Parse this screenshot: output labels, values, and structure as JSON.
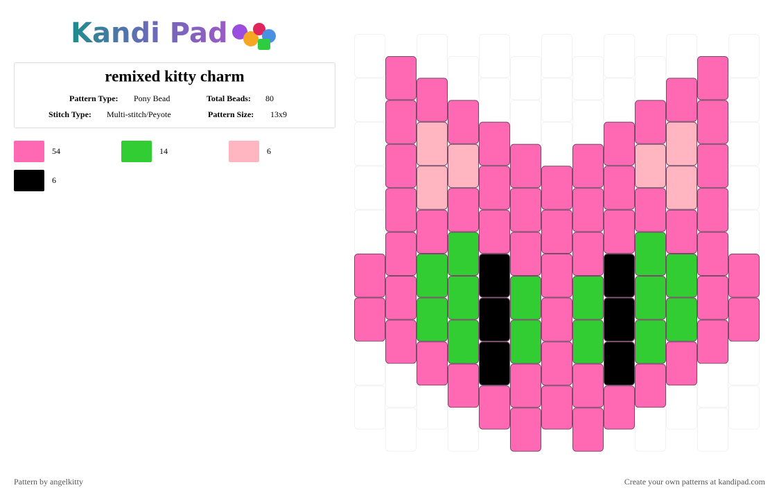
{
  "header": {
    "logo": "Kandi Pad",
    "title": "remixed kitty charm",
    "fields": [
      {
        "label": "Pattern Type:",
        "value": "Pony Bead"
      },
      {
        "label": "Total Beads:",
        "value": 80
      },
      {
        "label": "Stitch Type:",
        "value": "Multi-stitch/Peyote"
      },
      {
        "label": "Pattern Size:",
        "value": "13x9"
      }
    ]
  },
  "legend": [
    {
      "color": "#ff69b4",
      "count": 54
    },
    {
      "color": "#32cd32",
      "count": 14
    },
    {
      "color": "#ffb6c1",
      "count": 6
    },
    {
      "color": "#000000",
      "count": 6
    }
  ],
  "pattern": {
    "palette": {
      "P": "#ff69b4",
      "G": "#32cd32",
      "L": "#ffb6c1",
      "B": "#000000"
    },
    "columns": [
      ".....PP..",
      "PPPPPPP..",
      ".PLLPGGP.",
      ".PLPGGGP.",
      "..PPPBBBP",
      "..PPPGGPP",
      "...PPPPPP",
      "..PPPGGPP",
      "..PPPBBBP",
      ".PLPGGGP.",
      ".PLLPGGP.",
      "PPPPPPP..",
      ".....PP.."
    ]
  },
  "footer": {
    "left": "Pattern by angelkitty",
    "right": "Create your own patterns at kandipad.com"
  }
}
